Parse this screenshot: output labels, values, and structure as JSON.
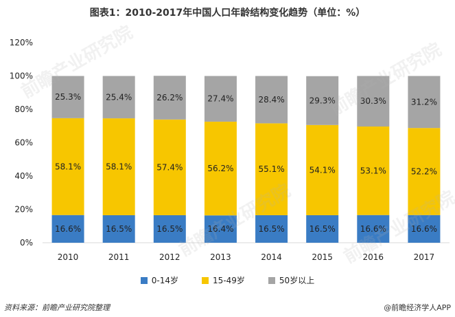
{
  "chart_data": {
    "type": "bar",
    "stacked": true,
    "title": "图表1：2010-2017年中国人口年龄结构变化趋势（单位：%）",
    "categories": [
      "2010",
      "2011",
      "2012",
      "2013",
      "2014",
      "2015",
      "2016",
      "2017"
    ],
    "series": [
      {
        "name": "0-14岁",
        "color": "#3a7cc4",
        "values": [
          16.6,
          16.5,
          16.5,
          16.4,
          16.5,
          16.5,
          16.6,
          16.6
        ],
        "labels": [
          "16.6%",
          "16.5%",
          "16.5%",
          "16.4%",
          "16.5%",
          "16.5%",
          "16.6%",
          "16.6%"
        ]
      },
      {
        "name": "15-49岁",
        "color": "#f7c600",
        "values": [
          58.1,
          58.1,
          57.4,
          56.2,
          55.1,
          54.1,
          53.1,
          52.2
        ],
        "labels": [
          "58.1%",
          "58.1%",
          "57.4%",
          "56.2%",
          "55.1%",
          "54.1%",
          "53.1%",
          "52.2%"
        ]
      },
      {
        "name": "50岁以上",
        "color": "#a5a5a5",
        "values": [
          25.3,
          25.4,
          26.2,
          27.4,
          28.4,
          29.3,
          30.3,
          31.2
        ],
        "labels": [
          "25.3%",
          "25.4%",
          "26.2%",
          "27.4%",
          "28.4%",
          "29.3%",
          "30.3%",
          "31.2%"
        ]
      }
    ],
    "ylim": [
      0,
      120
    ],
    "yticks": [
      "0%",
      "20%",
      "40%",
      "60%",
      "80%",
      "100%",
      "120%"
    ],
    "ytick_values": [
      0,
      20,
      40,
      60,
      80,
      100,
      120
    ],
    "legend_position": "bottom",
    "grid": false
  },
  "footer": {
    "source": "资料来源：前瞻产业研究院整理",
    "brand": "@前瞻经济学人APP"
  },
  "watermark": "前瞻产业研究院"
}
